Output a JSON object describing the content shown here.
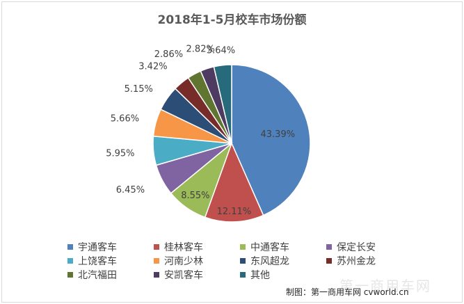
{
  "chart_data": {
    "type": "pie",
    "title": "2018年1-5月校车市场份额",
    "categories": [
      "宇通客车",
      "桂林客车",
      "中通客车",
      "保定长安",
      "上饶客车",
      "河南少林",
      "东风超龙",
      "苏州金龙",
      "北汽福田",
      "安凯客车",
      "其他"
    ],
    "values": [
      43.39,
      12.11,
      8.55,
      6.45,
      5.95,
      5.66,
      5.15,
      3.42,
      2.86,
      2.82,
      3.64
    ],
    "value_labels": [
      "43.39%",
      "12.11%",
      "8.55%",
      "6.45%",
      "5.95%",
      "5.66%",
      "5.15%",
      "3.42%",
      "2.86%",
      "2.82%",
      "3.64%"
    ],
    "colors": [
      "#4f81bd",
      "#c0504d",
      "#9bbb59",
      "#8064a2",
      "#4bacc6",
      "#f79646",
      "#2c4d75",
      "#772c2a",
      "#5f7530",
      "#4d3b62",
      "#276a7c"
    ],
    "legend_position": "bottom"
  },
  "credit": "制图：第一商用车网 cvworld.cn",
  "watermark": "第一商用车网"
}
